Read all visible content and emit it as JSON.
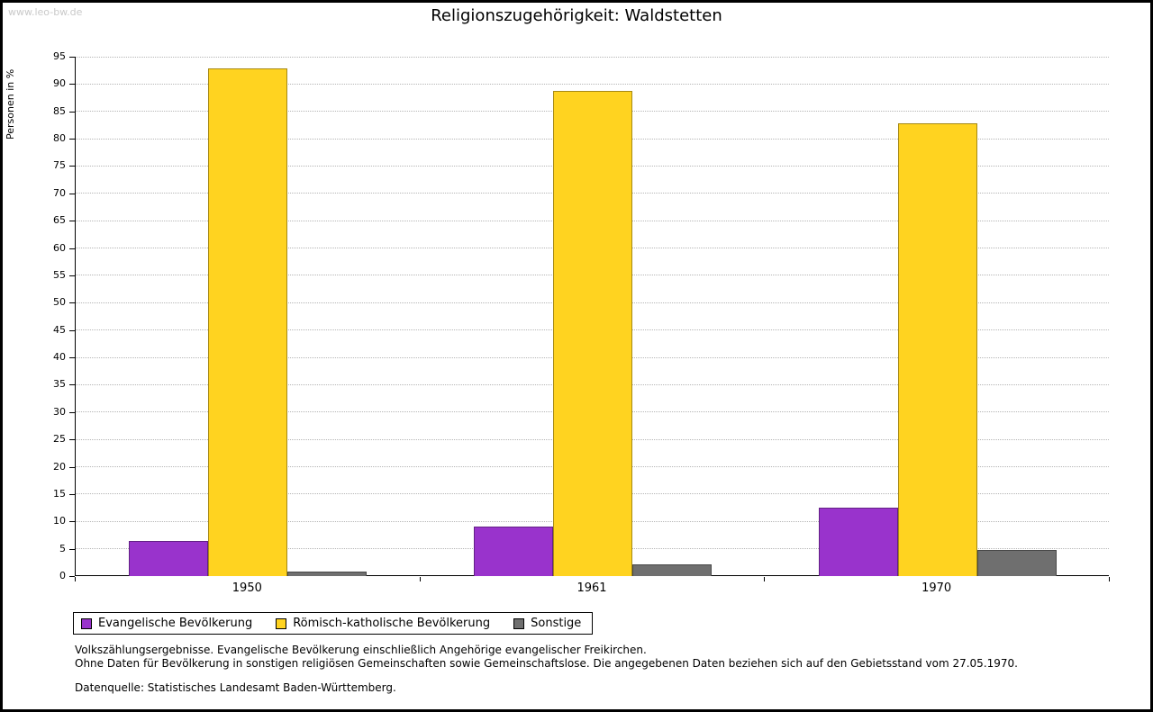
{
  "watermark": "www.leo-bw.de",
  "title": "Religionszugehörigkeit: Waldstetten",
  "chart_data": {
    "type": "bar",
    "title": "Religionszugehörigkeit: Waldstetten",
    "xlabel": "",
    "ylabel": "Personen in %",
    "ylim": [
      0,
      95
    ],
    "ytick_step": 5,
    "grid": true,
    "legend_position": "bottom-left",
    "categories": [
      "1950",
      "1961",
      "1970"
    ],
    "series": [
      {
        "key": "evangelisch",
        "name": "Evangelische Bevölkerung",
        "color": "#9933cc",
        "values": [
          6.4,
          9.1,
          12.5
        ]
      },
      {
        "key": "katholisch",
        "name": "Römisch-katholische Bevölkerung",
        "color": "#ffd320",
        "values": [
          92.9,
          88.7,
          82.8
        ]
      },
      {
        "key": "sonstige",
        "name": "Sonstige",
        "color": "#6f6f6f",
        "values": [
          0.8,
          2.2,
          4.7
        ]
      }
    ]
  },
  "footnotes": [
    "Volkszählungsergebnisse. Evangelische Bevölkerung einschließlich Angehörige evangelischer Freikirchen.",
    "Ohne Daten für Bevölkerung in sonstigen religiösen Gemeinschaften sowie Gemeinschaftslose. Die angegebenen Daten beziehen sich auf den Gebietsstand vom 27.05.1970.",
    "Datenquelle: Statistisches Landesamt Baden-Württemberg."
  ]
}
